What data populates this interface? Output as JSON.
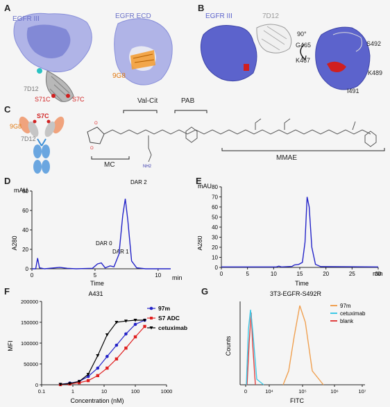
{
  "panels": {
    "A": {
      "letter": "A",
      "protein1": "EGFR III",
      "protein2": "EGFR ECD",
      "ab": "7D12",
      "ab2": "9G8",
      "mut1": "S71C",
      "mut2": "S7C"
    },
    "B": {
      "letter": "B",
      "protein": "EGFR III",
      "ab": "7D12",
      "rot": "90°",
      "residues": [
        "G465",
        "K467",
        "S492",
        "K489",
        "I491"
      ]
    },
    "C": {
      "letter": "C",
      "ab_top": "S7C",
      "ab_left": "9G8",
      "ab_mid": "7D12",
      "linker_vc": "Val-Cit",
      "linker_pab": "PAB",
      "mc": "MC",
      "mmae": "MMAE"
    },
    "D": {
      "letter": "D",
      "units": "mAU",
      "ylabel": "A280",
      "xlabel": "Time",
      "xunit": "min",
      "peaks": [
        "DAR 2",
        "DAR 0",
        "DAR 1"
      ]
    },
    "E": {
      "letter": "E",
      "units": "mAU",
      "ylabel": "A280",
      "xlabel": "Time",
      "xunit": "min"
    },
    "F": {
      "letter": "F",
      "title": "A431",
      "ylabel": "MFI",
      "xlabel": "Concentration (nM)"
    },
    "G": {
      "letter": "G",
      "title": "3T3-EGFR-S492R",
      "ylabel": "Counts",
      "xlabel": "FITC"
    }
  },
  "chart_data": [
    {
      "type": "line",
      "panel": "D",
      "ylim": [
        0,
        80
      ],
      "yticks": [
        0,
        20,
        40,
        60,
        80
      ],
      "xlim": [
        0,
        11
      ],
      "xticks": [
        0,
        5,
        10
      ],
      "series": [
        {
          "values": [
            [
              0,
              0
            ],
            [
              0.3,
              0
            ],
            [
              0.45,
              11
            ],
            [
              0.6,
              1
            ],
            [
              1,
              0
            ],
            [
              2.2,
              1.5
            ],
            [
              2.8,
              0.5
            ],
            [
              3.5,
              0
            ],
            [
              4.8,
              0.5
            ],
            [
              5.2,
              5
            ],
            [
              5.5,
              6
            ],
            [
              5.8,
              1
            ],
            [
              6.2,
              3
            ],
            [
              6.5,
              2
            ],
            [
              6.9,
              15
            ],
            [
              7.2,
              55
            ],
            [
              7.4,
              72
            ],
            [
              7.6,
              50
            ],
            [
              7.9,
              8
            ],
            [
              8.3,
              1
            ],
            [
              9,
              0
            ],
            [
              11,
              0
            ]
          ]
        }
      ],
      "colors": {
        "line": "#2323c8"
      }
    },
    {
      "type": "line",
      "panel": "E",
      "ylim": [
        0,
        80
      ],
      "yticks": [
        0,
        10,
        20,
        30,
        40,
        50,
        60,
        70,
        80
      ],
      "xlim": [
        0,
        30
      ],
      "xticks": [
        0,
        5,
        10,
        15,
        20,
        25,
        30
      ],
      "series": [
        {
          "values": [
            [
              0,
              0.5
            ],
            [
              10.5,
              0.5
            ],
            [
              11,
              1.2
            ],
            [
              11.5,
              0.5
            ],
            [
              13.5,
              1
            ],
            [
              14,
              2.5
            ],
            [
              14.8,
              3
            ],
            [
              15.5,
              5
            ],
            [
              16,
              25
            ],
            [
              16.4,
              70
            ],
            [
              16.8,
              60
            ],
            [
              17.3,
              20
            ],
            [
              18,
              3
            ],
            [
              19,
              0.8
            ],
            [
              30,
              0.5
            ]
          ]
        }
      ],
      "colors": {
        "line": "#2323c8"
      }
    },
    {
      "type": "line",
      "panel": "F",
      "title": "A431",
      "xlabel": "Concentration (nM)",
      "ylabel": "MFI",
      "ylim": [
        0,
        200000
      ],
      "yticks": [
        0,
        50000,
        100000,
        150000,
        200000
      ],
      "xscale": "log",
      "xlim": [
        0.1,
        1000
      ],
      "xticks": [
        0.1,
        1,
        10,
        100,
        1000
      ],
      "series": [
        {
          "name": "97m",
          "color": "#2323c8",
          "marker": "circle",
          "values": [
            [
              0.4,
              1000
            ],
            [
              0.8,
              4000
            ],
            [
              1.6,
              8000
            ],
            [
              3.1,
              20000
            ],
            [
              6.25,
              40000
            ],
            [
              12.5,
              68000
            ],
            [
              25,
              95000
            ],
            [
              50,
              122000
            ],
            [
              100,
              145000
            ],
            [
              200,
              155000
            ]
          ]
        },
        {
          "name": "S7 ADC",
          "color": "#e02020",
          "marker": "square",
          "values": [
            [
              0.4,
              500
            ],
            [
              0.8,
              2000
            ],
            [
              1.6,
              5000
            ],
            [
              3.1,
              10000
            ],
            [
              6.25,
              22000
            ],
            [
              12.5,
              40000
            ],
            [
              25,
              62000
            ],
            [
              50,
              88000
            ],
            [
              100,
              115000
            ],
            [
              200,
              140000
            ]
          ]
        },
        {
          "name": "cetuximab",
          "color": "#000000",
          "marker": "triangle",
          "values": [
            [
              0.4,
              1000
            ],
            [
              0.8,
              3000
            ],
            [
              1.6,
              8000
            ],
            [
              3.1,
              25000
            ],
            [
              6.25,
              70000
            ],
            [
              12.5,
              120000
            ],
            [
              25,
              150000
            ],
            [
              50,
              153000
            ],
            [
              100,
              155000
            ],
            [
              200,
              155000
            ]
          ]
        }
      ],
      "legend": "top-right"
    },
    {
      "type": "area",
      "panel": "G",
      "title": "3T3-EGFR-S492R",
      "xlabel": "FITC",
      "ylabel": "Counts",
      "xscale": "log",
      "xticks_labels": [
        "0",
        "10⁴",
        "10⁵",
        "10⁶",
        "10⁷"
      ],
      "series": [
        {
          "name": "97m",
          "color": "#f0a050"
        },
        {
          "name": "cetuximab",
          "color": "#3cc8e6"
        },
        {
          "name": "blank",
          "color": "#e04040"
        }
      ],
      "legend": "top-right"
    }
  ]
}
